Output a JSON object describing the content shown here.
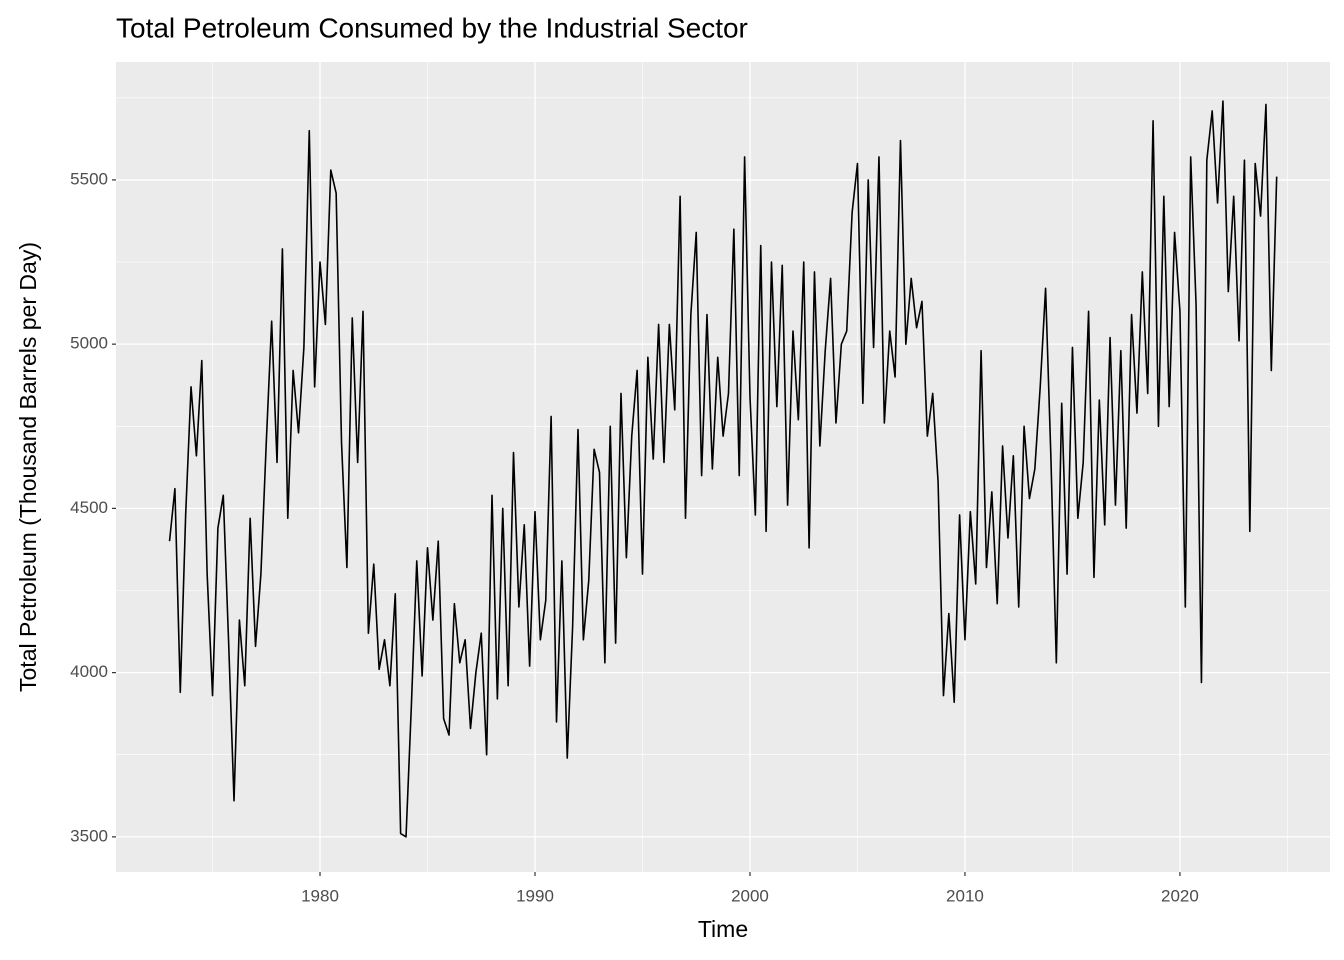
{
  "chart_data": {
    "type": "line",
    "title": "Total Petroleum Consumed by the Industrial Sector",
    "x_label": "Time",
    "y_label": "Total Petroleum (Thousand Barrels per Day)",
    "xlim": [
      1970.51,
      2026.98
    ],
    "ylim": [
      3393,
      5859
    ],
    "xticks": [
      1980,
      1990,
      2000,
      2010,
      2020
    ],
    "yticks": [
      3500,
      4000,
      4500,
      5000,
      5500
    ],
    "grid": true,
    "x": [
      1973,
      1973.25,
      1973.5,
      1973.75,
      1974,
      1974.25,
      1974.5,
      1974.75,
      1975,
      1975.25,
      1975.5,
      1975.75,
      1976,
      1976.25,
      1976.5,
      1976.75,
      1977,
      1977.25,
      1977.5,
      1977.75,
      1978,
      1978.25,
      1978.5,
      1978.75,
      1979,
      1979.25,
      1979.5,
      1979.75,
      1980,
      1980.25,
      1980.5,
      1980.75,
      1981,
      1981.25,
      1981.5,
      1981.75,
      1982,
      1982.25,
      1982.5,
      1982.75,
      1983,
      1983.25,
      1983.5,
      1983.75,
      1984,
      1984.25,
      1984.5,
      1984.75,
      1985,
      1985.25,
      1985.5,
      1985.75,
      1986,
      1986.25,
      1986.5,
      1986.75,
      1987,
      1987.25,
      1987.5,
      1987.75,
      1988,
      1988.25,
      1988.5,
      1988.75,
      1989,
      1989.25,
      1989.5,
      1989.75,
      1990,
      1990.25,
      1990.5,
      1990.75,
      1991,
      1991.25,
      1991.5,
      1991.75,
      1992,
      1992.25,
      1992.5,
      1992.75,
      1993,
      1993.25,
      1993.5,
      1993.75,
      1994,
      1994.25,
      1994.5,
      1994.75,
      1995,
      1995.25,
      1995.5,
      1995.75,
      1996,
      1996.25,
      1996.5,
      1996.75,
      1997,
      1997.25,
      1997.5,
      1997.75,
      1998,
      1998.25,
      1998.5,
      1998.75,
      1999,
      1999.25,
      1999.5,
      1999.75,
      2000,
      2000.25,
      2000.5,
      2000.75,
      2001,
      2001.25,
      2001.5,
      2001.75,
      2002,
      2002.25,
      2002.5,
      2002.75,
      2003,
      2003.25,
      2003.5,
      2003.75,
      2004,
      2004.25,
      2004.5,
      2004.75,
      2005,
      2005.25,
      2005.5,
      2005.75,
      2006,
      2006.25,
      2006.5,
      2006.75,
      2007,
      2007.25,
      2007.5,
      2007.75,
      2008,
      2008.25,
      2008.5,
      2008.75,
      2009,
      2009.25,
      2009.5,
      2009.75,
      2010,
      2010.25,
      2010.5,
      2010.75,
      2011,
      2011.25,
      2011.5,
      2011.75,
      2012,
      2012.25,
      2012.5,
      2012.75,
      2013,
      2013.25,
      2013.5,
      2013.75,
      2014,
      2014.25,
      2014.5,
      2014.75,
      2015,
      2015.25,
      2015.5,
      2015.75,
      2016,
      2016.25,
      2016.5,
      2016.75,
      2017,
      2017.25,
      2017.5,
      2017.75,
      2018,
      2018.25,
      2018.5,
      2018.75,
      2019,
      2019.25,
      2019.5,
      2019.75,
      2020,
      2020.25,
      2020.5,
      2020.75,
      2021,
      2021.25,
      2021.5,
      2021.75,
      2022,
      2022.25,
      2022.5,
      2022.75,
      2023,
      2023.25,
      2023.5,
      2023.75,
      2024,
      2024.25,
      2024.5
    ],
    "series": [
      {
        "color": "#000000",
        "values": [
          4400,
          4560,
          3940,
          4480,
          4870,
          4660,
          4950,
          4300,
          3930,
          4440,
          4540,
          4090,
          3610,
          4160,
          3960,
          4470,
          4080,
          4300,
          4700,
          5070,
          4640,
          5290,
          4470,
          4920,
          4730,
          4990,
          5650,
          4870,
          5250,
          5060,
          5530,
          5460,
          4700,
          4320,
          5080,
          4640,
          5100,
          4120,
          4330,
          4010,
          4100,
          3960,
          4240,
          3510,
          3500,
          3900,
          4340,
          3990,
          4380,
          4160,
          4400,
          3860,
          3810,
          4210,
          4030,
          4100,
          3830,
          4000,
          4120,
          3750,
          4540,
          3920,
          4500,
          3960,
          4670,
          4200,
          4450,
          4020,
          4490,
          4100,
          4220,
          4780,
          3850,
          4340,
          3740,
          4140,
          4740,
          4100,
          4280,
          4680,
          4610,
          4030,
          4750,
          4090,
          4850,
          4350,
          4720,
          4920,
          4300,
          4960,
          4650,
          5060,
          4640,
          5060,
          4800,
          5450,
          4470,
          5090,
          5340,
          4600,
          5090,
          4620,
          4960,
          4720,
          4850,
          5350,
          4600,
          5570,
          4840,
          4480,
          5300,
          4430,
          5250,
          4810,
          5240,
          4510,
          5040,
          4770,
          5250,
          4380,
          5220,
          4690,
          4980,
          5200,
          4760,
          5000,
          5040,
          5400,
          5550,
          4820,
          5500,
          4990,
          5570,
          4760,
          5040,
          4900,
          5620,
          5000,
          5200,
          5050,
          5130,
          4720,
          4850,
          4580,
          3930,
          4180,
          3910,
          4480,
          4100,
          4490,
          4270,
          4980,
          4320,
          4550,
          4210,
          4690,
          4410,
          4660,
          4200,
          4750,
          4530,
          4620,
          4870,
          5170,
          4650,
          4030,
          4820,
          4300,
          4990,
          4470,
          4640,
          5100,
          4290,
          4830,
          4450,
          5020,
          4510,
          4980,
          4440,
          5090,
          4790,
          5220,
          4850,
          5680,
          4750,
          5450,
          4810,
          5340,
          5100,
          4200,
          5570,
          5120,
          3970,
          5560,
          5710,
          5430,
          5740,
          5160,
          5450,
          5010,
          5560,
          4430,
          5550,
          5390,
          5730,
          4920,
          5510
        ]
      }
    ]
  }
}
